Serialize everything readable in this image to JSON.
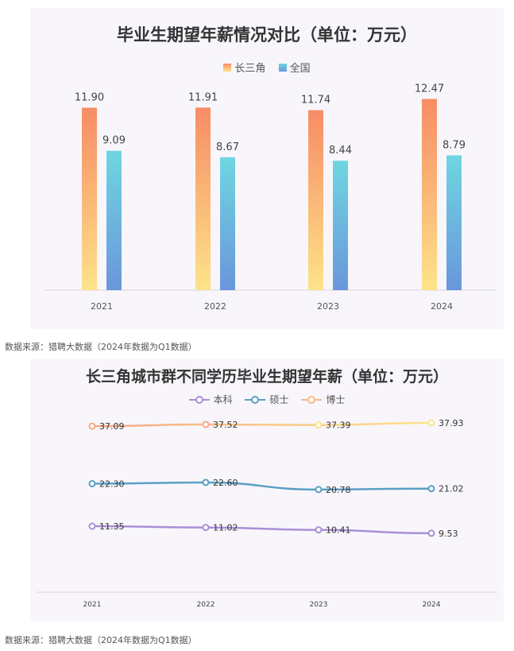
{
  "source1": "数据来源：猎聘大数据（2024年数据为Q1数据）",
  "source2": "数据来源：猎聘大数据（2024年数据为Q1数据）",
  "chart_data": [
    {
      "type": "bar",
      "title": "毕业生期望年薪情况对比（单位：万元）",
      "categories": [
        "2021",
        "2022",
        "2023",
        "2024"
      ],
      "series": [
        {
          "name": "长三角",
          "values": [
            11.9,
            11.91,
            11.74,
            12.47
          ],
          "labels": [
            "11.90",
            "11.91",
            "11.74",
            "12.47"
          ],
          "color_top": "#f78c65",
          "color_bottom": "#fde38a"
        },
        {
          "name": "全国",
          "values": [
            9.09,
            8.67,
            8.44,
            8.79
          ],
          "labels": [
            "9.09",
            "8.67",
            "8.44",
            "8.79"
          ],
          "color_top": "#6fd6e0",
          "color_bottom": "#6a96dc"
        }
      ],
      "ylim": [
        0,
        14
      ],
      "grid": false,
      "legend": "top-center"
    },
    {
      "type": "line",
      "title": "长三角城市群不同学历毕业生期望年薪（单位：万元）",
      "categories": [
        "2021",
        "2022",
        "2023",
        "2024"
      ],
      "series": [
        {
          "name": "本科",
          "values": [
            11.35,
            11.02,
            10.41,
            9.53
          ],
          "labels": [
            "11.35",
            "11.02",
            "10.41",
            "9.53"
          ],
          "color": "#a98fd6"
        },
        {
          "name": "硕士",
          "values": [
            22.3,
            22.6,
            20.78,
            21.02
          ],
          "labels": [
            "22.30",
            "22.60",
            "20.78",
            "21.02"
          ],
          "color": "#5a9fc4"
        },
        {
          "name": "博士",
          "values": [
            37.09,
            37.52,
            37.39,
            37.93
          ],
          "labels": [
            "37.09",
            "37.52",
            "37.39",
            "37.93"
          ],
          "color_start": "#f4a987",
          "color_end": "#fbe389"
        }
      ],
      "ylim": [
        0,
        45
      ],
      "grid": false,
      "legend": "top-center"
    }
  ]
}
